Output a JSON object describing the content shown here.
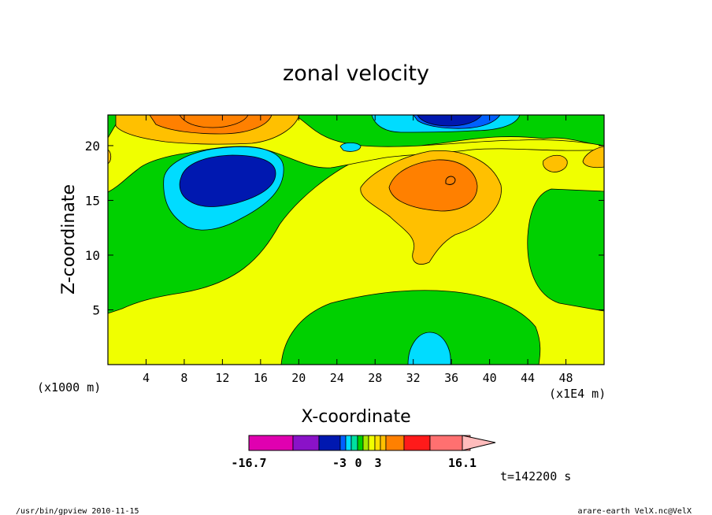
{
  "chart_data": {
    "type": "heatmap",
    "title": "zonal velocity",
    "xlabel": "X-coordinate",
    "ylabel": "Z-coordinate",
    "x_unit": "(x1E4 m)",
    "y_unit": "(x1000 m)",
    "xlim": [
      0,
      52
    ],
    "ylim": [
      0,
      22.8
    ],
    "x_ticks": [
      "4",
      "8",
      "12",
      "16",
      "20",
      "24",
      "28",
      "32",
      "36",
      "40",
      "44",
      "48"
    ],
    "y_ticks": [
      "5",
      "10",
      "15",
      "20"
    ],
    "colorbar": {
      "labels": [
        "-16.7",
        "-3",
        "0",
        "3",
        "16.1"
      ],
      "min": -16.7,
      "max": 16.1,
      "colors": [
        "#e000b0",
        "#8a12c8",
        "#0018b0",
        "#0060ff",
        "#00dcff",
        "#00e0a0",
        "#00d000",
        "#a8e800",
        "#f0ff00",
        "#ffe000",
        "#ffc000",
        "#ff8000",
        "#ff1a1a",
        "#ff7070",
        "#ffbcbc"
      ]
    },
    "regions": [
      {
        "label": "max positive",
        "x": 12,
        "z": 22,
        "level": "orange"
      },
      {
        "label": "min negative",
        "x": 12,
        "z": 17,
        "level": "dark blue"
      },
      {
        "label": "min negative",
        "x": 36,
        "z": 22,
        "level": "dark blue"
      },
      {
        "label": "max positive",
        "x": 35,
        "z": 17,
        "level": "orange"
      },
      {
        "label": "negative",
        "x": 34,
        "z": 1.5,
        "level": "cyan"
      }
    ],
    "time_label": "t=142200 s"
  },
  "footer": {
    "left": "/usr/bin/gpview  2010-11-15",
    "right": "arare-earth_VelX.nc@VelX"
  }
}
